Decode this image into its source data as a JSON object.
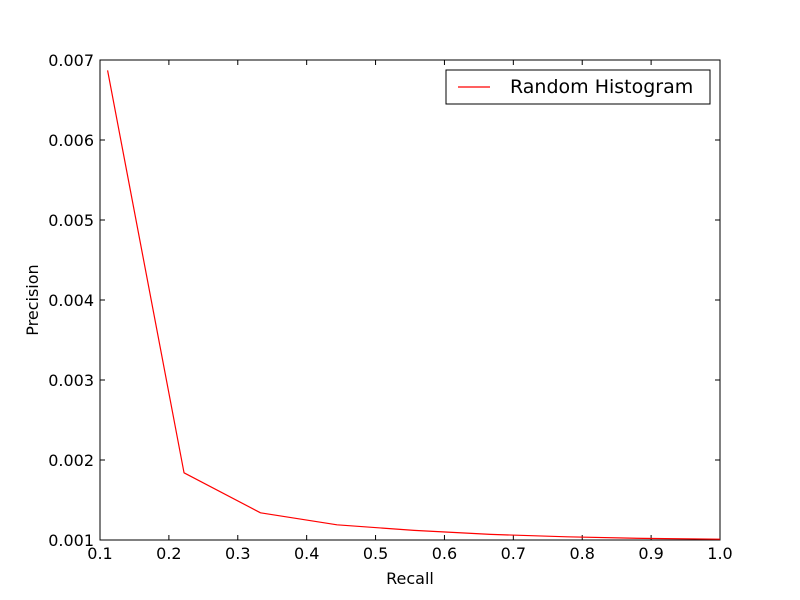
{
  "chart_data": {
    "type": "line",
    "title": "",
    "xlabel": "Recall",
    "ylabel": "Precision",
    "xlim": [
      0.1,
      1.0
    ],
    "ylim": [
      0.001,
      0.007
    ],
    "x_ticks": [
      "0.1",
      "0.2",
      "0.3",
      "0.4",
      "0.5",
      "0.6",
      "0.7",
      "0.8",
      "0.9",
      "1.0"
    ],
    "y_ticks": [
      "0.001",
      "0.002",
      "0.003",
      "0.004",
      "0.005",
      "0.006",
      "0.007"
    ],
    "grid": false,
    "legend": "top-right",
    "series": [
      {
        "name": "Random Histogram",
        "color": "#ff0000",
        "x": [
          0.111,
          0.222,
          0.333,
          0.444,
          0.556,
          0.667,
          0.778,
          0.889,
          1.0
        ],
        "y": [
          0.00687,
          0.00184,
          0.00134,
          0.00119,
          0.00112,
          0.00107,
          0.00104,
          0.00102,
          0.00101
        ]
      }
    ]
  }
}
